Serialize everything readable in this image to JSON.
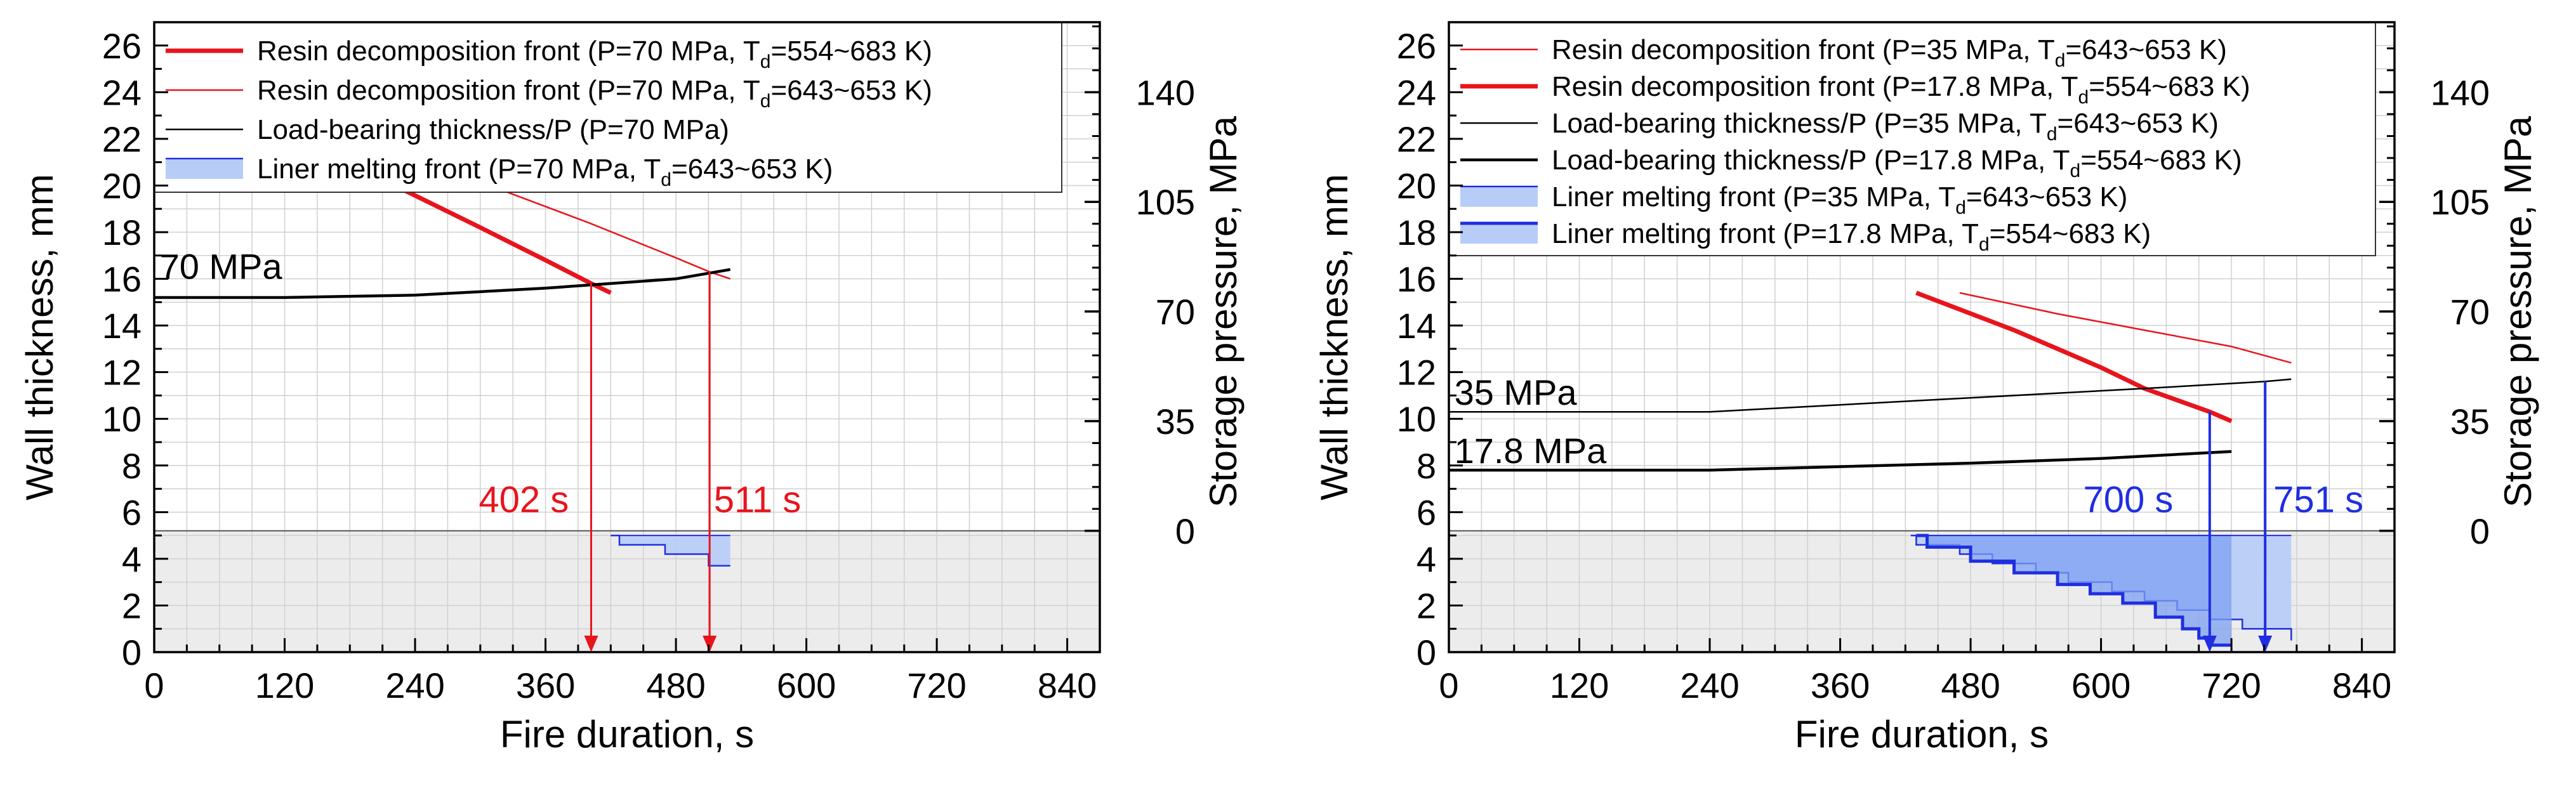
{
  "colors": {
    "red": "#e8141c",
    "black": "#000000",
    "blue": "#1f2ee0",
    "blue_fill": "#b7ccf7",
    "blue_fill_dark": "#7ea0f2",
    "gray_region": "#ececec",
    "grid": "#d0d0d0"
  },
  "chart_data": [
    {
      "id": "left",
      "type": "line",
      "xlabel": "Fire duration, s",
      "ylabel": "Wall thickness, mm",
      "y2label": "Storage pressure, MPa",
      "xlim": [
        0,
        870
      ],
      "ylim": [
        0,
        27
      ],
      "xticks": [
        "0",
        "120",
        "240",
        "360",
        "480",
        "600",
        "720",
        "840"
      ],
      "yticks": [
        "0",
        "2",
        "4",
        "6",
        "8",
        "10",
        "12",
        "14",
        "16",
        "18",
        "20",
        "22",
        "24",
        "26"
      ],
      "y2_ticks": [
        {
          "label": "0",
          "at_mm": 5.2
        },
        {
          "label": "35",
          "at_mm": 9.9
        },
        {
          "label": "70",
          "at_mm": 14.6
        },
        {
          "label": "105",
          "at_mm": 19.3
        },
        {
          "label": "140",
          "at_mm": 24.0
        }
      ],
      "gray_region_top_mm": 5.2,
      "legend": [
        {
          "text": "Resin decomposition front  (P=70 MPa, T",
          "sub": "d",
          "tail": "=554~683 K)",
          "style": "red_thick"
        },
        {
          "text": "Resin decomposition front (P=70 MPa, T",
          "sub": "d",
          "tail": "=643~653 K)",
          "style": "red_thin"
        },
        {
          "text": "Load-bearing thickness/P (P=70 MPa)",
          "sub": "",
          "tail": "",
          "style": "black_thin"
        },
        {
          "text": "Liner melting front (P=70 MPa, T",
          "sub": "d",
          "tail": "=643~653 K)",
          "style": "blue_patch"
        }
      ],
      "series": [
        {
          "name": "Resin decomposition front (P=70 MPa, Td=554~683 K)",
          "style": "red_thick",
          "points": [
            [
              230,
              19.8
            ],
            [
              300,
              18.2
            ],
            [
              360,
              16.8
            ],
            [
              402,
              15.8
            ],
            [
              420,
              15.4
            ]
          ]
        },
        {
          "name": "Resin decomposition front (P=70 MPa, Td=643~653 K)",
          "style": "red_thin",
          "points": [
            [
              320,
              19.8
            ],
            [
              400,
              18.4
            ],
            [
              480,
              16.9
            ],
            [
              511,
              16.3
            ],
            [
              530,
              16.0
            ]
          ]
        },
        {
          "name": "Load-bearing thickness/P (P=70 MPa)",
          "style": "black_thick",
          "points": [
            [
              0,
              15.2
            ],
            [
              120,
              15.2
            ],
            [
              240,
              15.3
            ],
            [
              360,
              15.6
            ],
            [
              480,
              16.0
            ],
            [
              530,
              16.4
            ]
          ]
        }
      ],
      "melt_fronts": [
        {
          "name": "Liner melting front (P=70 MPa, Td=643~653 K)",
          "steps": [
            [
              420,
              5.0
            ],
            [
              428,
              4.6
            ],
            [
              470,
              4.2
            ],
            [
              510,
              3.7
            ],
            [
              530,
              3.7
            ]
          ],
          "end_x": 530,
          "top_mm": 5.0,
          "style": "light"
        }
      ],
      "markers": [
        {
          "label": "402 s",
          "x": 402,
          "y_from": 15.8,
          "color": "red",
          "label_x": 340,
          "label_y": 6.0
        },
        {
          "label": "511 s",
          "x": 511,
          "y_from": 16.3,
          "color": "red",
          "label_x": 555,
          "label_y": 6.0
        }
      ],
      "pressure_labels": [
        {
          "label": "70 MPa",
          "x": 5,
          "y": 16.0
        }
      ]
    },
    {
      "id": "right",
      "type": "line",
      "xlabel": "Fire duration, s",
      "ylabel": "Wall thickness, mm",
      "y2label": "Storage pressure, MPa",
      "xlim": [
        0,
        870
      ],
      "ylim": [
        0,
        27
      ],
      "xticks": [
        "0",
        "120",
        "240",
        "360",
        "480",
        "600",
        "720",
        "840"
      ],
      "yticks": [
        "0",
        "2",
        "4",
        "6",
        "8",
        "10",
        "12",
        "14",
        "16",
        "18",
        "20",
        "22",
        "24",
        "26"
      ],
      "y2_ticks": [
        {
          "label": "0",
          "at_mm": 5.2
        },
        {
          "label": "35",
          "at_mm": 9.9
        },
        {
          "label": "70",
          "at_mm": 14.6
        },
        {
          "label": "105",
          "at_mm": 19.3
        },
        {
          "label": "140",
          "at_mm": 24.0
        }
      ],
      "gray_region_top_mm": 5.2,
      "legend": [
        {
          "text": "Resin decomposition front (P=35 MPa, T",
          "sub": "d",
          "tail": "=643~653 K)",
          "style": "red_thin"
        },
        {
          "text": "Resin decomposition front (P=17.8 MPa, T",
          "sub": "d",
          "tail": "=554~683 K)",
          "style": "red_thick"
        },
        {
          "text": "Load-bearing thickness/P (P=35 MPa, T",
          "sub": "d",
          "tail": "=643~653 K)",
          "style": "black_thin"
        },
        {
          "text": "Load-bearing thickness/P (P=17.8 MPa, T",
          "sub": "d",
          "tail": "=554~683 K)",
          "style": "black_thick"
        },
        {
          "text": "Liner melting front (P=35 MPa, T",
          "sub": "d",
          "tail": "=643~653 K)",
          "style": "blue_patch"
        },
        {
          "text": "Liner melting front  (P=17.8 MPa, T",
          "sub": "d",
          "tail": "=554~683 K)",
          "style": "blue_patch_line"
        }
      ],
      "series": [
        {
          "name": "Resin decomposition front (P=17.8 MPa, Td=554~683 K)",
          "style": "red_thick",
          "points": [
            [
              430,
              15.4
            ],
            [
              520,
              13.8
            ],
            [
              600,
              12.2
            ],
            [
              640,
              11.3
            ],
            [
              700,
              10.3
            ],
            [
              720,
              9.9
            ]
          ]
        },
        {
          "name": "Resin decomposition front (P=35 MPa, Td=643~653 K)",
          "style": "red_thin",
          "points": [
            [
              470,
              15.4
            ],
            [
              560,
              14.5
            ],
            [
              640,
              13.8
            ],
            [
              720,
              13.1
            ],
            [
              775,
              12.4
            ]
          ]
        },
        {
          "name": "Load-bearing thickness/P (P=35 MPa, Td=643~653 K)",
          "style": "black_thin",
          "points": [
            [
              0,
              10.3
            ],
            [
              240,
              10.3
            ],
            [
              480,
              10.9
            ],
            [
              640,
              11.3
            ],
            [
              751,
              11.6
            ],
            [
              775,
              11.7
            ]
          ]
        },
        {
          "name": "Load-bearing thickness/P (P=17.8 MPa, Td=554~683 K)",
          "style": "black_thick",
          "points": [
            [
              0,
              7.8
            ],
            [
              240,
              7.8
            ],
            [
              480,
              8.1
            ],
            [
              600,
              8.3
            ],
            [
              720,
              8.6
            ]
          ]
        }
      ],
      "melt_fronts": [
        {
          "name": "Liner melting front (P=35 MPa, Td=643~653 K)",
          "steps": [
            [
              425,
              5.0
            ],
            [
              430,
              4.6
            ],
            [
              470,
              4.2
            ],
            [
              500,
              3.8
            ],
            [
              540,
              3.4
            ],
            [
              570,
              3.0
            ],
            [
              610,
              2.6
            ],
            [
              640,
              2.2
            ],
            [
              670,
              1.8
            ],
            [
              700,
              1.4
            ],
            [
              730,
              1.0
            ],
            [
              775,
              0.5
            ]
          ],
          "end_x": 775,
          "top_mm": 5.0,
          "style": "light"
        },
        {
          "name": "Liner melting front (P=17.8 MPa, Td=554~683 K)",
          "steps": [
            [
              430,
              5.0
            ],
            [
              440,
              4.5
            ],
            [
              480,
              3.9
            ],
            [
              520,
              3.4
            ],
            [
              560,
              2.9
            ],
            [
              590,
              2.5
            ],
            [
              620,
              2.1
            ],
            [
              650,
              1.5
            ],
            [
              675,
              1.0
            ],
            [
              690,
              0.6
            ],
            [
              700,
              0.3
            ]
          ],
          "end_x": 720,
          "top_mm": 5.0,
          "style": "dark"
        }
      ],
      "markers": [
        {
          "label": "700 s",
          "x": 700,
          "y_from": 10.3,
          "color": "blue",
          "label_x": 625,
          "label_y": 6.0
        },
        {
          "label": "751 s",
          "x": 751,
          "y_from": 11.6,
          "color": "blue",
          "label_x": 800,
          "label_y": 6.0
        }
      ],
      "pressure_labels": [
        {
          "label": "35 MPa",
          "x": 5,
          "y": 10.6
        },
        {
          "label": "17.8 MPa",
          "x": 5,
          "y": 8.1
        }
      ]
    }
  ]
}
